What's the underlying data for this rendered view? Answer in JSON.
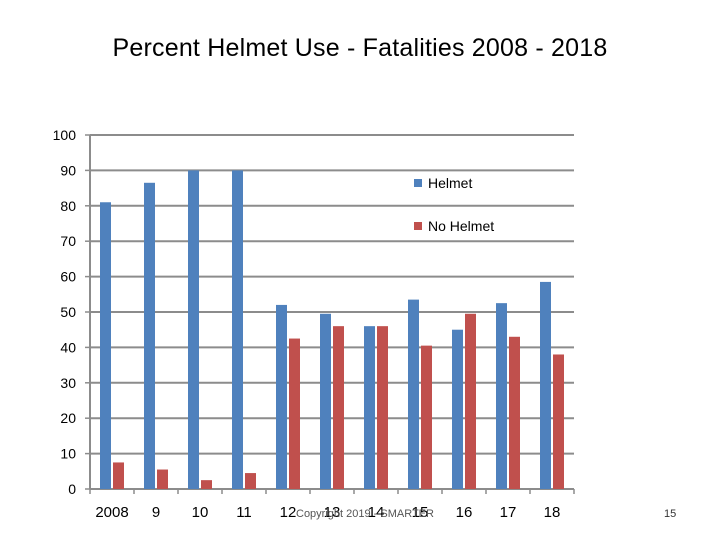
{
  "slide": {
    "footer_text": "Copyright 2019 - SMARTER",
    "page_number": "15"
  },
  "chart_data": {
    "type": "bar",
    "title": "Percent Helmet Use  -  Fatalities 2008 - 2018",
    "xlabel": "",
    "ylabel": "",
    "categories": [
      "2008",
      "9",
      "10",
      "11",
      "12",
      "13",
      "14",
      "15",
      "16",
      "17",
      "18"
    ],
    "series": [
      {
        "name": "Helmet",
        "color": "#4F81BD",
        "values": [
          81,
          86.5,
          90,
          90,
          52,
          49.5,
          46,
          53.5,
          45,
          52.5,
          58.5
        ]
      },
      {
        "name": "No Helmet",
        "color": "#C0504D",
        "values": [
          7.5,
          5.5,
          2.5,
          4.5,
          42.5,
          46,
          46,
          40.5,
          49.5,
          43,
          38
        ]
      }
    ],
    "ylim": [
      0,
      100
    ],
    "yticks": [
      0,
      10,
      20,
      30,
      40,
      50,
      60,
      70,
      80,
      90,
      100
    ],
    "grid": true,
    "legend_position": "top-right"
  }
}
